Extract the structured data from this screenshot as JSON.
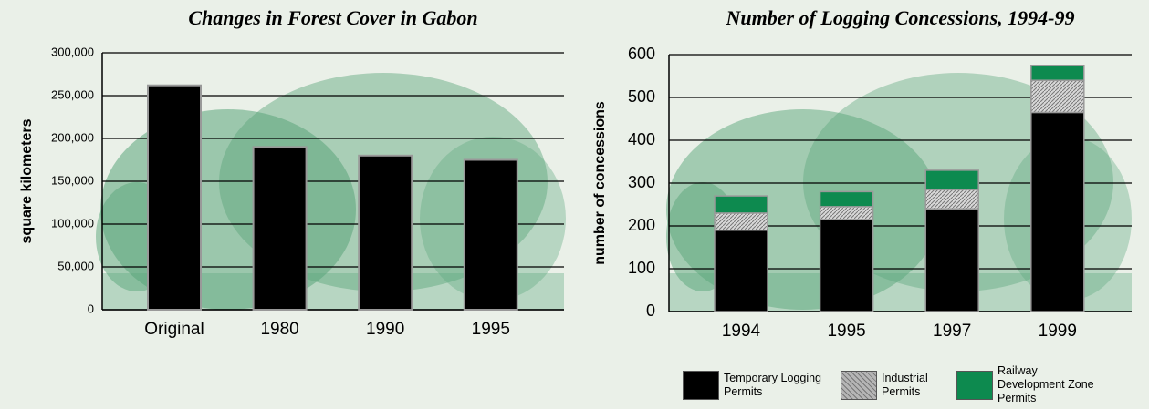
{
  "chart_data": [
    {
      "type": "bar",
      "title": "Changes in Forest Cover in Gabon",
      "y_label": "square kilometers",
      "categories": [
        "Original",
        "1980",
        "1990",
        "1995"
      ],
      "values": [
        262000,
        190000,
        180000,
        175000
      ],
      "color": "#000000",
      "ylim": [
        0,
        300000
      ],
      "yticks": [
        0,
        {
          "value": 50000,
          "label": "50,000"
        },
        {
          "value": 100000,
          "label": "100,000"
        },
        {
          "value": 150000,
          "label": "150,000"
        },
        {
          "value": 200000,
          "label": "200,000"
        },
        {
          "value": 250000,
          "label": "250,000"
        },
        {
          "value": 300000,
          "label": "300,000"
        }
      ],
      "grid": true
    },
    {
      "type": "stacked_bar",
      "title": "Number of Logging Concessions, 1994-99",
      "y_label": "number of concessions",
      "categories": [
        "1994",
        "1995",
        "1997",
        "1999"
      ],
      "series": [
        {
          "name": "Temporary Logging Permits",
          "color": "#000000",
          "values": [
            190,
            215,
            240,
            465
          ]
        },
        {
          "name": "Industrial Permits",
          "color": "#b5b5b5",
          "values": [
            40,
            30,
            45,
            75
          ]
        },
        {
          "name": "Railway Development Zone Permits",
          "color": "#0d8a4f",
          "values": [
            40,
            35,
            45,
            35
          ]
        }
      ],
      "ylim": [
        0,
        600
      ],
      "yticks": [
        0,
        100,
        200,
        300,
        400,
        500,
        600
      ],
      "grid": true
    }
  ]
}
